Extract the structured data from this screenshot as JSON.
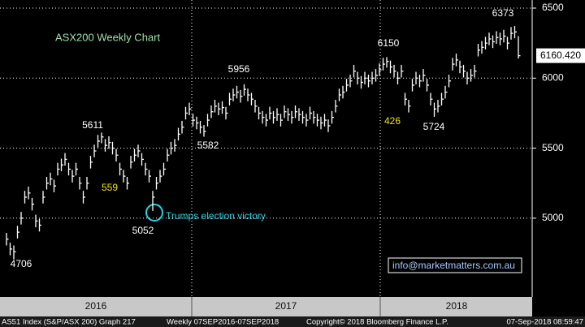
{
  "chart_data": {
    "type": "hlc",
    "title": "ASX200 Weekly Chart",
    "source": "info@marketmatters.com.au",
    "years": [
      "2016",
      "2017",
      "2018"
    ],
    "ylim": [
      4530,
      6558
    ],
    "yticks": [
      5000,
      5500,
      6000,
      6500
    ],
    "grid": true,
    "color": "#ffffff",
    "close": [
      4850,
      4780,
      4760,
      4900,
      5000,
      5150,
      5180,
      5100,
      4980,
      4950,
      5150,
      5250,
      5280,
      5230,
      5350,
      5380,
      5420,
      5350,
      5300,
      5350,
      5250,
      5150,
      5250,
      5400,
      5480,
      5550,
      5580,
      5520,
      5540,
      5500,
      5450,
      5350,
      5300,
      5250,
      5400,
      5450,
      5480,
      5420,
      5350,
      5300,
      5150,
      5250,
      5300,
      5350,
      5450,
      5500,
      5520,
      5600,
      5650,
      5750,
      5780,
      5700,
      5680,
      5650,
      5620,
      5700,
      5760,
      5800,
      5780,
      5790,
      5750,
      5850,
      5880,
      5900,
      5870,
      5920,
      5880,
      5850,
      5800,
      5750,
      5720,
      5700,
      5750,
      5720,
      5740,
      5700,
      5760,
      5740,
      5720,
      5760,
      5740,
      5720,
      5700,
      5750,
      5720,
      5700,
      5680,
      5700,
      5660,
      5720,
      5800,
      5880,
      5900,
      5950,
      5980,
      6050,
      6000,
      5970,
      6000,
      5980,
      6000,
      6020,
      6060,
      6100,
      6120,
      6080,
      6050,
      6000,
      6050,
      5850,
      5800,
      5950,
      6000,
      5980,
      6020,
      5950,
      5850,
      5780,
      5800,
      5850,
      5900,
      5980,
      6100,
      6130,
      6080,
      6050,
      6000,
      6020,
      6050,
      6200,
      6220,
      6250,
      6280,
      6260,
      6290,
      6280,
      6300,
      6250,
      6320,
      6330,
      6160.42
    ],
    "high": [
      4895,
      4825,
      4805,
      4945,
      5045,
      5195,
      5225,
      5145,
      5025,
      4995,
      5195,
      5295,
      5325,
      5275,
      5395,
      5425,
      5465,
      5395,
      5345,
      5395,
      5295,
      5195,
      5295,
      5445,
      5525,
      5595,
      5611,
      5565,
      5585,
      5545,
      5495,
      5395,
      5345,
      5295,
      5445,
      5495,
      5525,
      5465,
      5395,
      5345,
      5195,
      5295,
      5345,
      5395,
      5495,
      5545,
      5565,
      5645,
      5695,
      5795,
      5825,
      5745,
      5725,
      5695,
      5665,
      5745,
      5805,
      5845,
      5825,
      5835,
      5795,
      5895,
      5925,
      5945,
      5915,
      5956,
      5925,
      5895,
      5845,
      5795,
      5765,
      5745,
      5795,
      5765,
      5785,
      5745,
      5805,
      5785,
      5765,
      5805,
      5785,
      5765,
      5745,
      5795,
      5765,
      5745,
      5725,
      5745,
      5705,
      5765,
      5845,
      5925,
      5945,
      5995,
      6025,
      6095,
      6045,
      6015,
      6045,
      6025,
      6045,
      6065,
      6105,
      6145,
      6150,
      6125,
      6095,
      6045,
      6095,
      5895,
      5845,
      5995,
      6045,
      6025,
      6065,
      5995,
      5895,
      5825,
      5845,
      5895,
      5945,
      6025,
      6145,
      6175,
      6125,
      6095,
      6045,
      6065,
      6095,
      6245,
      6265,
      6295,
      6325,
      6305,
      6335,
      6325,
      6345,
      6295,
      6365,
      6373,
      6300
    ],
    "low": [
      4805,
      4735,
      4706,
      4855,
      4955,
      5105,
      5135,
      5055,
      4935,
      4905,
      5105,
      5205,
      5235,
      5185,
      5305,
      5335,
      5375,
      5305,
      5255,
      5305,
      5205,
      5105,
      5205,
      5355,
      5435,
      5505,
      5535,
      5475,
      5495,
      5455,
      5405,
      5305,
      5255,
      5205,
      5355,
      5405,
      5435,
      5375,
      5305,
      5255,
      5052,
      5205,
      5255,
      5305,
      5405,
      5455,
      5475,
      5555,
      5605,
      5705,
      5735,
      5655,
      5635,
      5605,
      5582,
      5655,
      5715,
      5755,
      5735,
      5745,
      5705,
      5805,
      5835,
      5855,
      5825,
      5875,
      5835,
      5805,
      5755,
      5705,
      5675,
      5655,
      5705,
      5675,
      5695,
      5655,
      5715,
      5695,
      5675,
      5715,
      5695,
      5675,
      5655,
      5705,
      5675,
      5655,
      5635,
      5655,
      5615,
      5675,
      5755,
      5835,
      5855,
      5905,
      5935,
      6005,
      5955,
      5925,
      5955,
      5935,
      5955,
      5975,
      6015,
      6055,
      6075,
      6035,
      6005,
      5955,
      6005,
      5805,
      5755,
      5905,
      5955,
      5935,
      5975,
      5905,
      5805,
      5724,
      5755,
      5805,
      5855,
      5935,
      6055,
      6085,
      6035,
      6005,
      5955,
      5975,
      6005,
      6155,
      6175,
      6205,
      6235,
      6215,
      6245,
      6235,
      6255,
      6205,
      6275,
      6285,
      6140
    ],
    "last_label": "6160.420",
    "annotations": [
      {
        "text": "559"
      },
      {
        "text": "426"
      },
      {
        "text": "Trumps election victory"
      }
    ],
    "footer": {
      "security": "AS51 Index (S&P/ASX 200) Graph 217",
      "period": "Weekly 07SEP2016-07SEP2018",
      "copyright": "Copyright© 2018 Bloomberg Finance L.P.",
      "timestamp": "07-Sep-2018 08:59:47"
    }
  }
}
